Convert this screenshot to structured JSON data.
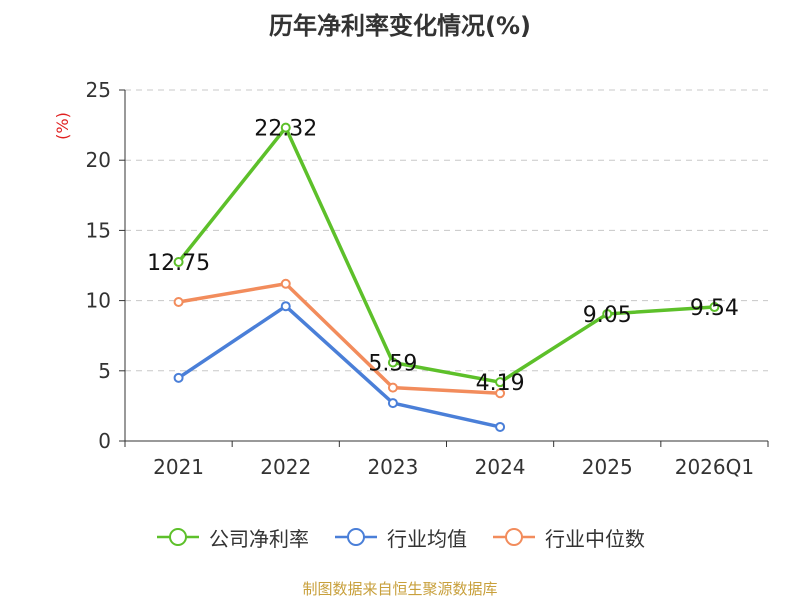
{
  "title": "历年净利率变化情况(%)",
  "source_note": "制图数据来自恒生聚源数据库",
  "legend_labels": [
    "公司净利率",
    "行业均值",
    "行业中位数"
  ],
  "chart_data": {
    "type": "line",
    "title": "历年净利率变化情况(%)",
    "ylabel": "(%)",
    "xlabel": "",
    "categories": [
      "2021",
      "2022",
      "2023",
      "2024",
      "2025",
      "2026Q1"
    ],
    "ylim": [
      0,
      25
    ],
    "yticks": [
      0,
      5,
      10,
      15,
      20,
      25
    ],
    "grid": true,
    "legend_position": "bottom",
    "series": [
      {
        "name": "公司净利率",
        "color": "#5dc02a",
        "values": [
          12.75,
          22.32,
          5.59,
          4.19,
          9.05,
          9.54
        ],
        "labels": [
          "12.75",
          "22.32",
          "5.59",
          "4.19",
          "9.05",
          "9.54"
        ]
      },
      {
        "name": "行业均值",
        "color": "#4a7fd8",
        "values": [
          4.5,
          9.6,
          2.7,
          1.0,
          null,
          null
        ]
      },
      {
        "name": "行业中位数",
        "color": "#f28c5c",
        "values": [
          9.9,
          11.2,
          3.8,
          3.4,
          null,
          null
        ]
      }
    ],
    "ylabel_color": "#e02020"
  }
}
